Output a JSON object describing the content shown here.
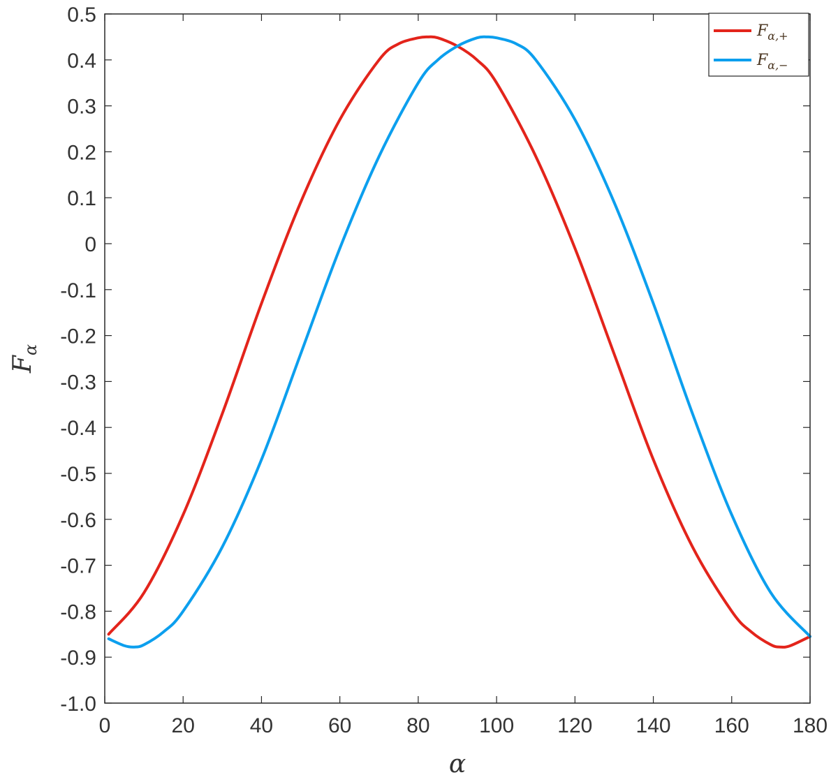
{
  "chart_data": {
    "type": "line",
    "xlabel": "α",
    "ylabel": "F_α",
    "xlim": [
      0,
      180
    ],
    "ylim": [
      -1.0,
      0.5
    ],
    "xticks": [
      0,
      20,
      40,
      60,
      80,
      100,
      120,
      140,
      160,
      180
    ],
    "xtick_labels": [
      "0",
      "20",
      "40",
      "60",
      "80",
      "100",
      "120",
      "140",
      "160",
      "180"
    ],
    "yticks": [
      0.5,
      0.4,
      0.3,
      0.2,
      0.1,
      0,
      -0.1,
      -0.2,
      -0.3,
      -0.4,
      -0.5,
      -0.6,
      -0.7,
      -0.8,
      -0.9,
      -1.0
    ],
    "ytick_labels": [
      "0.5",
      "0.4",
      "0.3",
      "0.2",
      "0.1",
      "0",
      "-0.1",
      "-0.2",
      "-0.3",
      "-0.4",
      "-0.5",
      "-0.6",
      "-0.7",
      "-0.8",
      "-0.9",
      "-1.0"
    ],
    "grid": false,
    "legend_position": "top-right",
    "series": [
      {
        "name": "F_{α,+}",
        "legend_main": "F",
        "legend_sub": "α,+",
        "color": "#e3241b",
        "x": [
          1,
          10,
          20,
          30,
          40,
          50,
          60,
          70,
          75,
          80,
          82.5,
          85,
          90,
          95,
          100,
          110,
          120,
          130,
          140,
          150,
          160,
          165,
          170,
          172.5,
          175,
          180
        ],
        "y": [
          -0.85,
          -0.76,
          -0.59,
          -0.37,
          -0.13,
          0.09,
          0.27,
          0.4,
          0.435,
          0.448,
          0.45,
          0.448,
          0.43,
          0.4,
          0.35,
          0.19,
          -0.01,
          -0.24,
          -0.47,
          -0.66,
          -0.8,
          -0.845,
          -0.873,
          -0.878,
          -0.875,
          -0.855
        ]
      },
      {
        "name": "F_{α,−}",
        "legend_main": "F",
        "legend_sub": "α,−",
        "color": "#0c9fee",
        "x": [
          1,
          5,
          7.5,
          10,
          15,
          20,
          30,
          40,
          50,
          60,
          70,
          80,
          85,
          90,
          95,
          97.5,
          100,
          105,
          110,
          120,
          130,
          140,
          150,
          160,
          170,
          180
        ],
        "y": [
          -0.86,
          -0.875,
          -0.878,
          -0.873,
          -0.845,
          -0.8,
          -0.66,
          -0.47,
          -0.24,
          -0.01,
          0.19,
          0.35,
          0.4,
          0.43,
          0.448,
          0.45,
          0.448,
          0.435,
          0.4,
          0.27,
          0.09,
          -0.13,
          -0.37,
          -0.59,
          -0.76,
          -0.855
        ]
      }
    ]
  }
}
